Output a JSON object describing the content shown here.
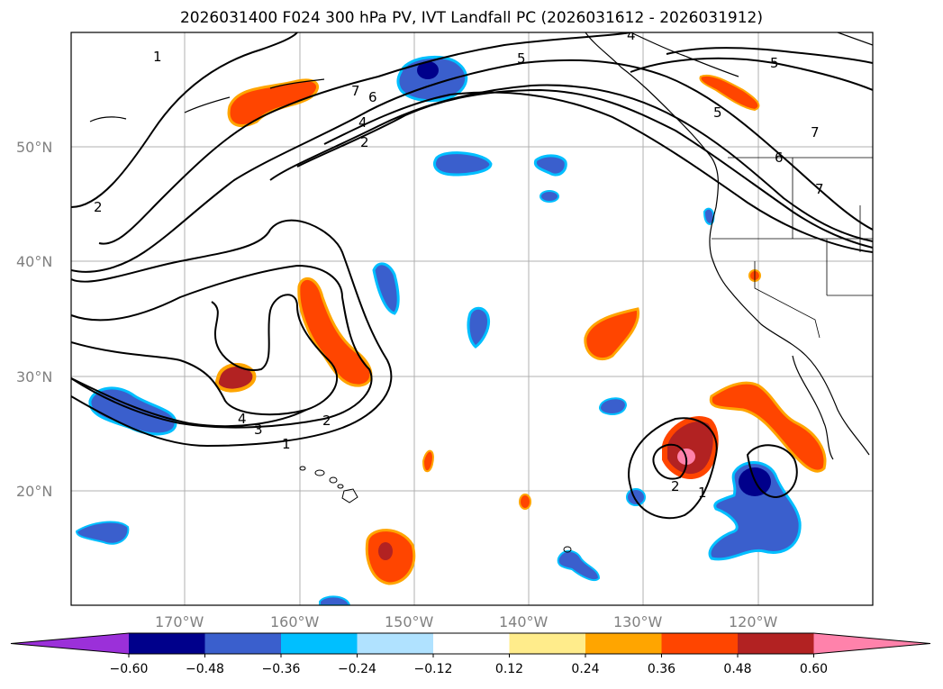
{
  "title": "2026031400 F024 300 hPa PV, IVT Landfall PC (2026031612 - 2026031912)",
  "map": {
    "lat_labels": [
      "50°N",
      "40°N",
      "30°N",
      "20°N"
    ],
    "lon_labels": [
      "170°W",
      "160°W",
      "150°W",
      "140°W",
      "130°W",
      "120°W"
    ],
    "contour_labels": [
      "1",
      "7",
      "6",
      "4",
      "2",
      "5",
      "5",
      "5",
      "7",
      "6",
      "7",
      "2",
      "4",
      "3",
      "2",
      "1",
      "2",
      "1",
      "4"
    ]
  },
  "colorbar": {
    "colors": [
      "#9b30d9",
      "#00008b",
      "#3a5fcd",
      "#00bfff",
      "#b0e2ff",
      "#ffffff",
      "#ffec8b",
      "#ffa500",
      "#ff4500",
      "#b22222",
      "#ff82ab"
    ],
    "tick_labels": [
      "−0.60",
      "−0.48",
      "−0.36",
      "−0.24",
      "−0.12",
      "0.12",
      "0.24",
      "0.36",
      "0.48",
      "0.60"
    ]
  }
}
